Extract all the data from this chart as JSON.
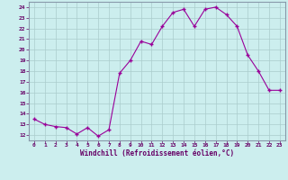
{
  "x": [
    0,
    1,
    2,
    3,
    4,
    5,
    6,
    7,
    8,
    9,
    10,
    11,
    12,
    13,
    14,
    15,
    16,
    17,
    18,
    19,
    20,
    21,
    22,
    23
  ],
  "y": [
    13.5,
    13.0,
    12.8,
    12.7,
    12.1,
    12.7,
    11.9,
    12.5,
    17.8,
    19.0,
    20.8,
    20.5,
    22.2,
    23.5,
    23.8,
    22.2,
    23.8,
    24.0,
    23.3,
    22.2,
    19.5,
    18.0,
    16.2,
    16.2
  ],
  "line_color": "#990099",
  "marker": "+",
  "background_color": "#cceeee",
  "grid_color": "#aacccc",
  "xlabel": "Windchill (Refroidissement éolien,°C)",
  "xlabel_color": "#660066",
  "tick_color": "#660066",
  "ylim": [
    11.5,
    24.5
  ],
  "xlim": [
    -0.5,
    23.5
  ],
  "yticks": [
    12,
    13,
    14,
    15,
    16,
    17,
    18,
    19,
    20,
    21,
    22,
    23,
    24
  ],
  "xticks": [
    0,
    1,
    2,
    3,
    4,
    5,
    6,
    7,
    8,
    9,
    10,
    11,
    12,
    13,
    14,
    15,
    16,
    17,
    18,
    19,
    20,
    21,
    22,
    23
  ]
}
